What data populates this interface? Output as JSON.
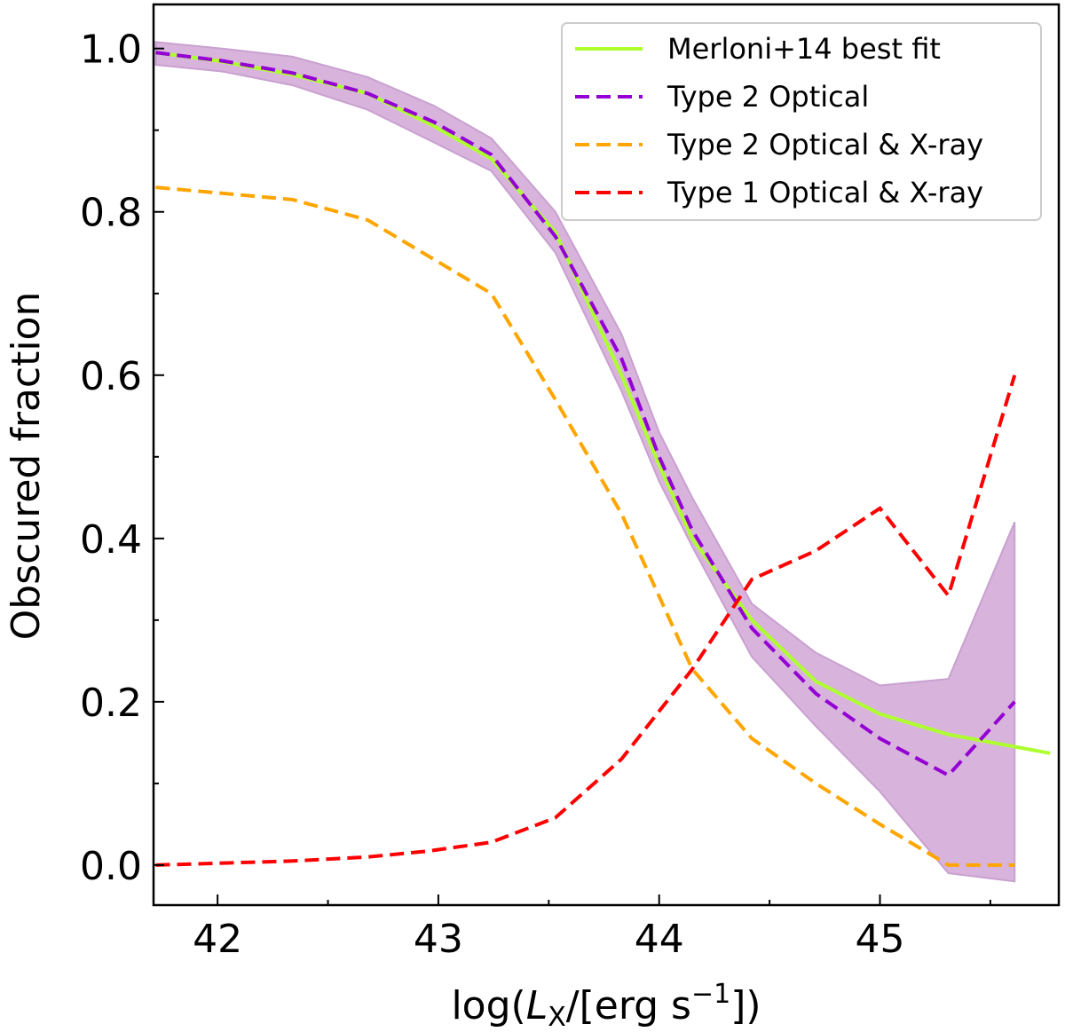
{
  "chart_data": {
    "type": "line",
    "title": "",
    "xlabel": "log(L_X/[erg s^-1])",
    "xlabel_parts": {
      "pre": "log(",
      "L": "L",
      "sub": "X",
      "mid": "/[erg s",
      "sup": "−1",
      "post": "])"
    },
    "ylabel": "Obscured fraction",
    "xlim": [
      41.71,
      45.81
    ],
    "ylim": [
      -0.049,
      1.054
    ],
    "xticks": [
      42,
      43,
      44,
      45
    ],
    "xtick_labels": [
      "42",
      "43",
      "44",
      "45"
    ],
    "yticks": [
      0.0,
      0.2,
      0.4,
      0.6,
      0.8,
      1.0
    ],
    "ytick_labels": [
      "0.0",
      "0.2",
      "0.4",
      "0.6",
      "0.8",
      "1.0"
    ],
    "legend_position": "top-right",
    "series": [
      {
        "name": "Merloni+14 best fit",
        "color": "#adff2f",
        "style": "solid",
        "x": [
          41.72,
          42.0,
          42.34,
          42.68,
          42.98,
          43.24,
          43.53,
          43.83,
          44.0,
          44.15,
          44.42,
          44.71,
          45.0,
          45.31,
          45.61,
          45.77
        ],
        "y": [
          0.995,
          0.985,
          0.968,
          0.945,
          0.905,
          0.865,
          0.775,
          0.6,
          0.49,
          0.4,
          0.3,
          0.225,
          0.185,
          0.16,
          0.145,
          0.137
        ]
      },
      {
        "name": "Type 2 Optical",
        "color": "#9400d3",
        "style": "dashed",
        "x": [
          41.72,
          42.02,
          42.34,
          42.68,
          42.98,
          43.24,
          43.53,
          43.83,
          44.0,
          44.15,
          44.42,
          44.71,
          45.0,
          45.31,
          45.61
        ],
        "y": [
          0.995,
          0.985,
          0.97,
          0.945,
          0.91,
          0.87,
          0.77,
          0.62,
          0.5,
          0.41,
          0.29,
          0.21,
          0.155,
          0.11,
          0.2
        ],
        "band_upper": [
          1.008,
          1.0,
          0.99,
          0.965,
          0.93,
          0.89,
          0.8,
          0.65,
          0.53,
          0.45,
          0.32,
          0.26,
          0.22,
          0.228,
          0.42
        ],
        "band_lower": [
          0.98,
          0.972,
          0.955,
          0.925,
          0.885,
          0.85,
          0.75,
          0.58,
          0.47,
          0.39,
          0.255,
          0.17,
          0.09,
          -0.01,
          -0.02
        ],
        "band_color": "#d8b4dc"
      },
      {
        "name": "Type 2 Optical & X-ray",
        "color": "#ffa500",
        "style": "dashed",
        "x": [
          41.72,
          42.34,
          42.68,
          43.24,
          43.53,
          43.83,
          44.15,
          44.42,
          44.71,
          45.0,
          45.31,
          45.61
        ],
        "y": [
          0.83,
          0.815,
          0.79,
          0.7,
          0.57,
          0.43,
          0.24,
          0.155,
          0.1,
          0.05,
          0.0,
          0.0
        ]
      },
      {
        "name": "Type 1 Optical & X-ray",
        "color": "#ff0000",
        "style": "dashed",
        "x": [
          41.72,
          42.34,
          42.68,
          42.95,
          43.24,
          43.53,
          43.83,
          44.15,
          44.42,
          44.71,
          45.0,
          45.31,
          45.61
        ],
        "y": [
          0.0,
          0.005,
          0.01,
          0.017,
          0.028,
          0.058,
          0.13,
          0.24,
          0.35,
          0.385,
          0.437,
          0.33,
          0.6
        ]
      }
    ]
  }
}
